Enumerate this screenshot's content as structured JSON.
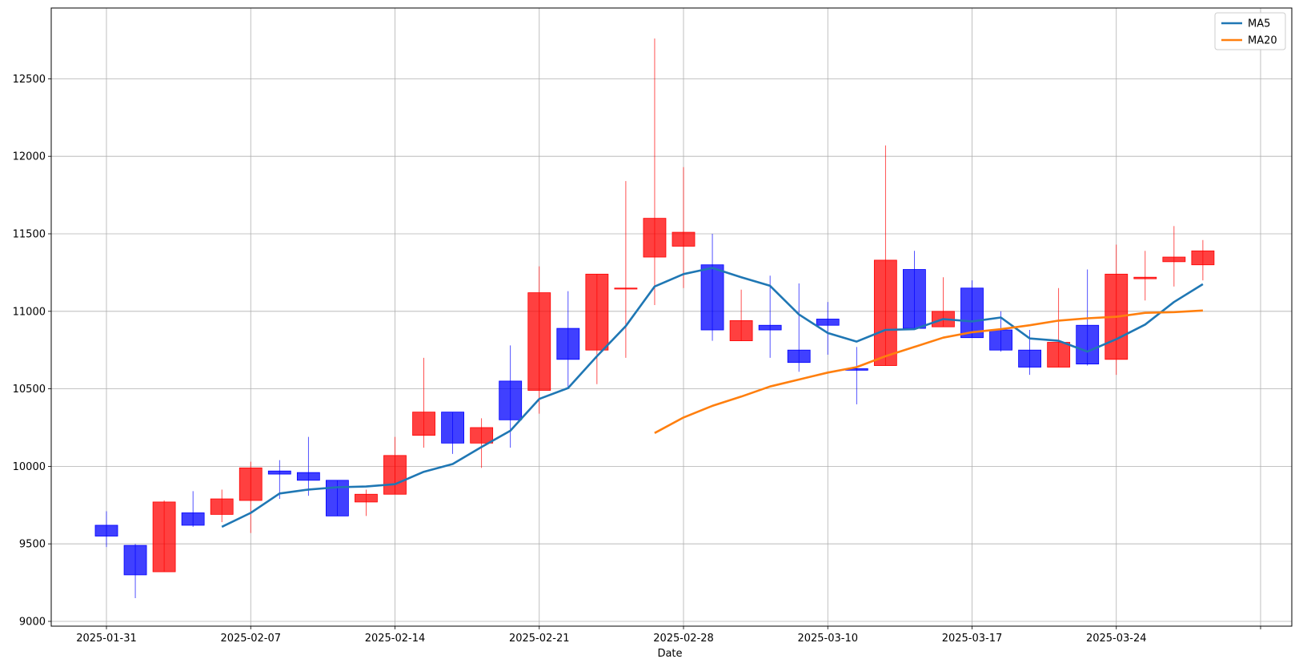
{
  "chart_data": {
    "type": "candlestick",
    "xlabel": "Date",
    "ylabel": "",
    "ylim": [
      8990,
      12880
    ],
    "grid": true,
    "legend_position": "top-right",
    "x_tick_labels": [
      "2025-01-31",
      "2025-02-07",
      "2025-02-14",
      "2025-02-21",
      "2025-02-28",
      "2025-03-10",
      "2025-03-17",
      "2025-03-24",
      ""
    ],
    "y_ticks": [
      9000,
      9500,
      10000,
      10500,
      11000,
      11500,
      12000,
      12500
    ],
    "up_color": "#ff0000",
    "down_color": "#0000ff",
    "candles": [
      {
        "open": 9620,
        "close": 9550,
        "high": 9710,
        "low": 9480
      },
      {
        "open": 9490,
        "close": 9300,
        "high": 9500,
        "low": 9150
      },
      {
        "open": 9320,
        "close": 9770,
        "high": 9780,
        "low": 9320
      },
      {
        "open": 9700,
        "close": 9620,
        "high": 9840,
        "low": 9610
      },
      {
        "open": 9690,
        "close": 9790,
        "high": 9850,
        "low": 9640
      },
      {
        "open": 9780,
        "close": 9990,
        "high": 10030,
        "low": 9570
      },
      {
        "open": 9970,
        "close": 9950,
        "high": 10040,
        "low": 9790
      },
      {
        "open": 9960,
        "close": 9910,
        "high": 10190,
        "low": 9810
      },
      {
        "open": 9910,
        "close": 9680,
        "high": 9910,
        "low": 9680
      },
      {
        "open": 9770,
        "close": 9820,
        "high": 9850,
        "low": 9680
      },
      {
        "open": 9820,
        "close": 10070,
        "high": 10190,
        "low": 9820
      },
      {
        "open": 10200,
        "close": 10350,
        "high": 10700,
        "low": 10120
      },
      {
        "open": 10350,
        "close": 10150,
        "high": 10350,
        "low": 10080
      },
      {
        "open": 10150,
        "close": 10250,
        "high": 10310,
        "low": 9990
      },
      {
        "open": 10550,
        "close": 10300,
        "high": 10780,
        "low": 10120
      },
      {
        "open": 10490,
        "close": 11120,
        "high": 11290,
        "low": 10340
      },
      {
        "open": 10890,
        "close": 10690,
        "high": 11130,
        "low": 10500
      },
      {
        "open": 10750,
        "close": 11240,
        "high": 11240,
        "low": 10530
      },
      {
        "open": 11150,
        "close": 11150,
        "high": 11840,
        "low": 10700
      },
      {
        "open": 11350,
        "close": 11600,
        "high": 12760,
        "low": 11040
      },
      {
        "open": 11420,
        "close": 11510,
        "high": 11930,
        "low": 11150
      },
      {
        "open": 11300,
        "close": 10880,
        "high": 11500,
        "low": 10810
      },
      {
        "open": 10810,
        "close": 10940,
        "high": 11140,
        "low": 10810
      },
      {
        "open": 10910,
        "close": 10880,
        "high": 11230,
        "low": 10700
      },
      {
        "open": 10750,
        "close": 10670,
        "high": 11180,
        "low": 10610
      },
      {
        "open": 10950,
        "close": 10910,
        "high": 11060,
        "low": 10720
      },
      {
        "open": 10630,
        "close": 10620,
        "high": 10770,
        "low": 10400
      },
      {
        "open": 10650,
        "close": 11330,
        "high": 12070,
        "low": 10650
      },
      {
        "open": 11270,
        "close": 10890,
        "high": 11390,
        "low": 10880
      },
      {
        "open": 10900,
        "close": 11000,
        "high": 11220,
        "low": 10900
      },
      {
        "open": 11150,
        "close": 10830,
        "high": 11200,
        "low": 10830
      },
      {
        "open": 10880,
        "close": 10750,
        "high": 11000,
        "low": 10740
      },
      {
        "open": 10750,
        "close": 10640,
        "high": 10880,
        "low": 10590
      },
      {
        "open": 10640,
        "close": 10800,
        "high": 11150,
        "low": 10640
      },
      {
        "open": 10910,
        "close": 10660,
        "high": 11270,
        "low": 10650
      },
      {
        "open": 10690,
        "close": 11240,
        "high": 11430,
        "low": 10590
      },
      {
        "open": 11210,
        "close": 11220,
        "high": 11390,
        "low": 11070
      },
      {
        "open": 11320,
        "close": 11350,
        "high": 11550,
        "low": 11160
      },
      {
        "open": 11300,
        "close": 11390,
        "high": 11460,
        "low": 11200
      }
    ],
    "series": [
      {
        "name": "MA5",
        "color": "#1f77b4",
        "start_index": 4,
        "values": [
          9610,
          9700,
          9825,
          9850,
          9865,
          9870,
          9885,
          9965,
          10015,
          10125,
          10230,
          10435,
          10505,
          10710,
          10905,
          11160,
          11240,
          11280,
          11220,
          11165,
          10980,
          10860,
          10805,
          10880,
          10885,
          10950,
          10935,
          10960,
          10825,
          10810,
          10740,
          10820,
          10915,
          11060,
          11175
        ]
      },
      {
        "name": "MA20",
        "color": "#ff7f0e",
        "start_index": 19,
        "values": [
          10215,
          10315,
          10390,
          10450,
          10515,
          10560,
          10605,
          10640,
          10710,
          10770,
          10830,
          10865,
          10885,
          10910,
          10940,
          10955,
          10965,
          10990,
          10995,
          11005
        ]
      }
    ]
  }
}
